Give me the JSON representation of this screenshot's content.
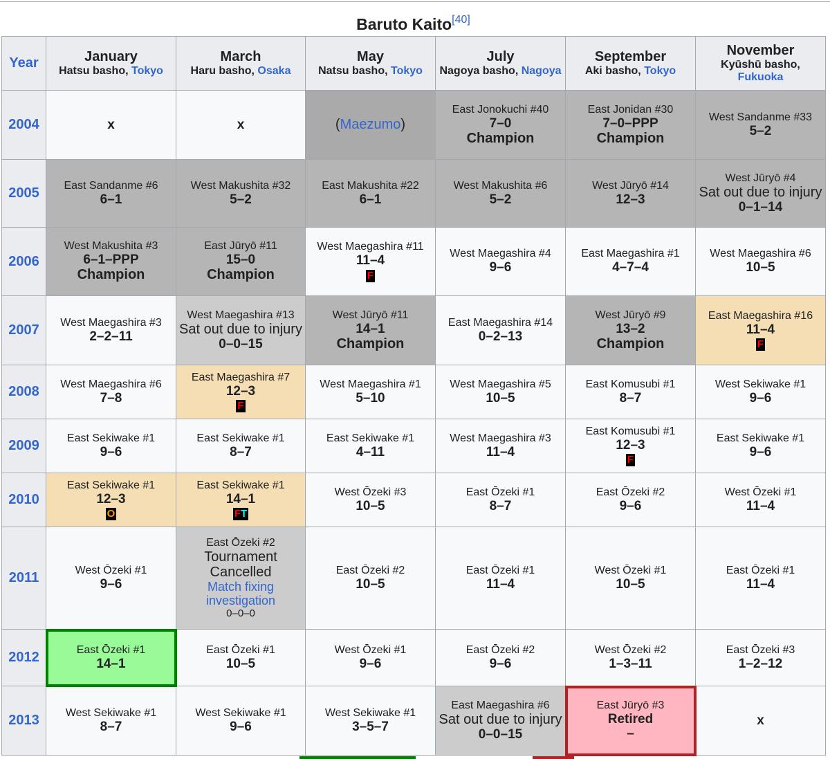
{
  "caption": {
    "title": "Baruto Kaito",
    "ref": "[40]"
  },
  "header": {
    "year": "Year",
    "months": [
      {
        "month": "January",
        "sub": "Hatsu basho, ",
        "city": "Tokyo"
      },
      {
        "month": "March",
        "sub": "Haru basho, ",
        "city": "Osaka"
      },
      {
        "month": "May",
        "sub": "Natsu basho, ",
        "city": "Tokyo"
      },
      {
        "month": "July",
        "sub": "Nagoya basho, ",
        "city": "Nagoya"
      },
      {
        "month": "September",
        "sub": "Aki basho, ",
        "city": "Tokyo"
      },
      {
        "month": "November",
        "sub": "Kyūshū basho, ",
        "city": "Fukuoka"
      }
    ]
  },
  "colors": {
    "link": "#3366cc",
    "header_bg": "#eaecf0",
    "tan": "#f5deb3",
    "green": "#98fb98",
    "green_border": "#008000",
    "pink": "#ffb6c1",
    "pink_border": "#b22222",
    "badge_F": "#ff0000",
    "badge_O": "#ff9900",
    "badge_T": "#00ffff"
  },
  "rows": [
    {
      "year": "2004",
      "cells": [
        {
          "style": "white",
          "parts": [
            [
              "x",
              "x"
            ]
          ]
        },
        {
          "style": "white",
          "parts": [
            [
              "x",
              "x"
            ]
          ]
        },
        {
          "style": "dark",
          "parts": [
            [
              "mz",
              "(Maezumo)"
            ]
          ]
        },
        {
          "style": "gray",
          "parts": [
            [
              "r",
              "East Jonokuchi #40"
            ],
            [
              "b",
              "7–0"
            ],
            [
              "c",
              "Champion"
            ]
          ]
        },
        {
          "style": "gray",
          "parts": [
            [
              "r",
              "East Jonidan #30"
            ],
            [
              "b",
              "7–0–PPP"
            ],
            [
              "c",
              "Champion"
            ]
          ]
        },
        {
          "style": "gray",
          "parts": [
            [
              "r",
              "West Sandanme #33"
            ],
            [
              "b",
              "5–2"
            ]
          ]
        }
      ]
    },
    {
      "year": "2005",
      "cells": [
        {
          "style": "gray",
          "parts": [
            [
              "r",
              "East Sandanme #6"
            ],
            [
              "b",
              "6–1"
            ]
          ]
        },
        {
          "style": "gray",
          "parts": [
            [
              "r",
              "West Makushita #32"
            ],
            [
              "b",
              "5–2"
            ]
          ]
        },
        {
          "style": "gray",
          "parts": [
            [
              "r",
              "East Makushita #22"
            ],
            [
              "b",
              "6–1"
            ]
          ]
        },
        {
          "style": "gray",
          "parts": [
            [
              "r",
              "West Makushita #6"
            ],
            [
              "b",
              "5–2"
            ]
          ]
        },
        {
          "style": "gray",
          "parts": [
            [
              "r",
              "West Jūryō #14"
            ],
            [
              "b",
              "12–3"
            ]
          ]
        },
        {
          "style": "gray",
          "parts": [
            [
              "r",
              "West Jūryō #4"
            ],
            [
              "n",
              "Sat out due to injury"
            ],
            [
              "b",
              "0–1–14"
            ]
          ]
        }
      ]
    },
    {
      "year": "2006",
      "cells": [
        {
          "style": "gray",
          "parts": [
            [
              "r",
              "West Makushita #3"
            ],
            [
              "b",
              "6–1–PPP"
            ],
            [
              "c",
              "Champion"
            ]
          ]
        },
        {
          "style": "gray",
          "parts": [
            [
              "r",
              "East Jūryō #11"
            ],
            [
              "b",
              "15–0"
            ],
            [
              "c",
              "Champion"
            ]
          ]
        },
        {
          "style": "white",
          "parts": [
            [
              "r",
              "West Maegashira #11"
            ],
            [
              "b",
              "11–4"
            ]
          ],
          "badge": [
            {
              "t": "F",
              "c": "#ff0000"
            }
          ]
        },
        {
          "style": "white",
          "parts": [
            [
              "r",
              "West Maegashira #4"
            ],
            [
              "b",
              "9–6"
            ]
          ]
        },
        {
          "style": "white",
          "parts": [
            [
              "r",
              "East Maegashira #1"
            ],
            [
              "b",
              "4–7–4"
            ]
          ]
        },
        {
          "style": "white",
          "parts": [
            [
              "r",
              "West Maegashira #6"
            ],
            [
              "b",
              "10–5"
            ]
          ]
        }
      ]
    },
    {
      "year": "2007",
      "cells": [
        {
          "style": "white",
          "parts": [
            [
              "r",
              "West Maegashira #3"
            ],
            [
              "b",
              "2–2–11"
            ]
          ]
        },
        {
          "style": "light",
          "parts": [
            [
              "r",
              "West Maegashira #13"
            ],
            [
              "n",
              "Sat out due to injury"
            ],
            [
              "b",
              "0–0–15"
            ]
          ]
        },
        {
          "style": "gray",
          "parts": [
            [
              "r",
              "West Jūryō #11"
            ],
            [
              "b",
              "14–1"
            ],
            [
              "c",
              "Champion"
            ]
          ]
        },
        {
          "style": "white",
          "parts": [
            [
              "r",
              "East Maegashira #14"
            ],
            [
              "b",
              "0–2–13"
            ]
          ]
        },
        {
          "style": "gray",
          "parts": [
            [
              "r",
              "West Jūryō #9"
            ],
            [
              "b",
              "13–2"
            ],
            [
              "c",
              "Champion"
            ]
          ]
        },
        {
          "style": "tan",
          "parts": [
            [
              "r",
              "East Maegashira #16"
            ],
            [
              "b",
              "11–4"
            ]
          ],
          "badge": [
            {
              "t": "F",
              "c": "#ff0000"
            }
          ]
        }
      ]
    },
    {
      "year": "2008",
      "cells": [
        {
          "style": "white",
          "parts": [
            [
              "r",
              "West Maegashira #6"
            ],
            [
              "b",
              "7–8"
            ]
          ]
        },
        {
          "style": "tan",
          "parts": [
            [
              "r",
              "East Maegashira #7"
            ],
            [
              "b",
              "12–3"
            ]
          ],
          "badge": [
            {
              "t": "F",
              "c": "#ff0000"
            }
          ]
        },
        {
          "style": "white",
          "parts": [
            [
              "r",
              "West Maegashira #1"
            ],
            [
              "b",
              "5–10"
            ]
          ]
        },
        {
          "style": "white",
          "parts": [
            [
              "r",
              "West Maegashira #5"
            ],
            [
              "b",
              "10–5"
            ]
          ]
        },
        {
          "style": "white",
          "parts": [
            [
              "r",
              "East Komusubi #1"
            ],
            [
              "b",
              "8–7"
            ]
          ]
        },
        {
          "style": "white",
          "parts": [
            [
              "r",
              "West Sekiwake #1"
            ],
            [
              "b",
              "9–6"
            ]
          ]
        }
      ]
    },
    {
      "year": "2009",
      "cells": [
        {
          "style": "white",
          "parts": [
            [
              "r",
              "East Sekiwake #1"
            ],
            [
              "b",
              "9–6"
            ]
          ]
        },
        {
          "style": "white",
          "parts": [
            [
              "r",
              "East Sekiwake #1"
            ],
            [
              "b",
              "8–7"
            ]
          ]
        },
        {
          "style": "white",
          "parts": [
            [
              "r",
              "East Sekiwake #1"
            ],
            [
              "b",
              "4–11"
            ]
          ]
        },
        {
          "style": "white",
          "parts": [
            [
              "r",
              "West Maegashira #3"
            ],
            [
              "b",
              "11–4"
            ]
          ]
        },
        {
          "style": "white",
          "parts": [
            [
              "r",
              "East Komusubi #1"
            ],
            [
              "b",
              "12–3"
            ]
          ],
          "badge": [
            {
              "t": "F",
              "c": "#ff0000"
            }
          ]
        },
        {
          "style": "white",
          "parts": [
            [
              "r",
              "East Sekiwake #1"
            ],
            [
              "b",
              "9–6"
            ]
          ]
        }
      ]
    },
    {
      "year": "2010",
      "cells": [
        {
          "style": "tan",
          "parts": [
            [
              "r",
              "East Sekiwake #1"
            ],
            [
              "b",
              "12–3"
            ]
          ],
          "badge": [
            {
              "t": "O",
              "c": "#ff9900"
            }
          ]
        },
        {
          "style": "tan",
          "parts": [
            [
              "r",
              "East Sekiwake #1"
            ],
            [
              "b",
              "14–1"
            ]
          ],
          "badge": [
            {
              "t": "F",
              "c": "#ff0000"
            },
            {
              "t": "T",
              "c": "#00ffff"
            }
          ]
        },
        {
          "style": "white",
          "parts": [
            [
              "r",
              "West Ōzeki #3"
            ],
            [
              "b",
              "10–5"
            ]
          ]
        },
        {
          "style": "white",
          "parts": [
            [
              "r",
              "East Ōzeki #1"
            ],
            [
              "b",
              "8–7"
            ]
          ]
        },
        {
          "style": "white",
          "parts": [
            [
              "r",
              "East Ōzeki #2"
            ],
            [
              "b",
              "9–6"
            ]
          ]
        },
        {
          "style": "white",
          "parts": [
            [
              "r",
              "West Ōzeki #1"
            ],
            [
              "b",
              "11–4"
            ]
          ]
        }
      ]
    },
    {
      "year": "2011",
      "cells": [
        {
          "style": "white",
          "parts": [
            [
              "r",
              "West Ōzeki #1"
            ],
            [
              "b",
              "9–6"
            ]
          ]
        },
        {
          "style": "light",
          "parts": [
            [
              "r",
              "East Ōzeki #2"
            ],
            [
              "n",
              "Tournament Cancelled"
            ],
            [
              "l",
              "Match fixing investigation"
            ],
            [
              "s",
              "0–0–0"
            ]
          ]
        },
        {
          "style": "white",
          "parts": [
            [
              "r",
              "East Ōzeki #2"
            ],
            [
              "b",
              "10–5"
            ]
          ]
        },
        {
          "style": "white",
          "parts": [
            [
              "r",
              "East Ōzeki #1"
            ],
            [
              "b",
              "11–4"
            ]
          ]
        },
        {
          "style": "white",
          "parts": [
            [
              "r",
              "West Ōzeki #1"
            ],
            [
              "b",
              "10–5"
            ]
          ]
        },
        {
          "style": "white",
          "parts": [
            [
              "r",
              "East Ōzeki #1"
            ],
            [
              "b",
              "11–4"
            ]
          ]
        }
      ]
    },
    {
      "year": "2012",
      "cells": [
        {
          "style": "green",
          "parts": [
            [
              "r",
              "East Ōzeki #1"
            ],
            [
              "b",
              "14–1"
            ]
          ]
        },
        {
          "style": "white",
          "parts": [
            [
              "r",
              "East Ōzeki #1"
            ],
            [
              "b",
              "10–5"
            ]
          ]
        },
        {
          "style": "white",
          "parts": [
            [
              "r",
              "West Ōzeki #1"
            ],
            [
              "b",
              "9–6"
            ]
          ]
        },
        {
          "style": "white",
          "parts": [
            [
              "r",
              "East Ōzeki #2"
            ],
            [
              "b",
              "9–6"
            ]
          ]
        },
        {
          "style": "white",
          "parts": [
            [
              "r",
              "West Ōzeki #2"
            ],
            [
              "b",
              "1–3–11"
            ]
          ]
        },
        {
          "style": "white",
          "parts": [
            [
              "r",
              "East Ōzeki #3"
            ],
            [
              "b",
              "1–2–12"
            ]
          ]
        }
      ]
    },
    {
      "year": "2013",
      "cells": [
        {
          "style": "white",
          "parts": [
            [
              "r",
              "West Sekiwake #1"
            ],
            [
              "b",
              "8–7"
            ]
          ]
        },
        {
          "style": "white",
          "parts": [
            [
              "r",
              "West Sekiwake #1"
            ],
            [
              "b",
              "9–6"
            ]
          ]
        },
        {
          "style": "white",
          "parts": [
            [
              "r",
              "West Sekiwake #1"
            ],
            [
              "b",
              "3–5–7"
            ]
          ]
        },
        {
          "style": "light",
          "parts": [
            [
              "r",
              "East Maegashira #6"
            ],
            [
              "n",
              "Sat out due to injury"
            ],
            [
              "b",
              "0–0–15"
            ]
          ]
        },
        {
          "style": "pink",
          "parts": [
            [
              "r",
              "East Jūryō #3"
            ],
            [
              "b",
              "Retired"
            ],
            [
              "b",
              "–"
            ]
          ]
        },
        {
          "style": "white",
          "parts": [
            [
              "x",
              "x"
            ]
          ]
        }
      ]
    }
  ]
}
